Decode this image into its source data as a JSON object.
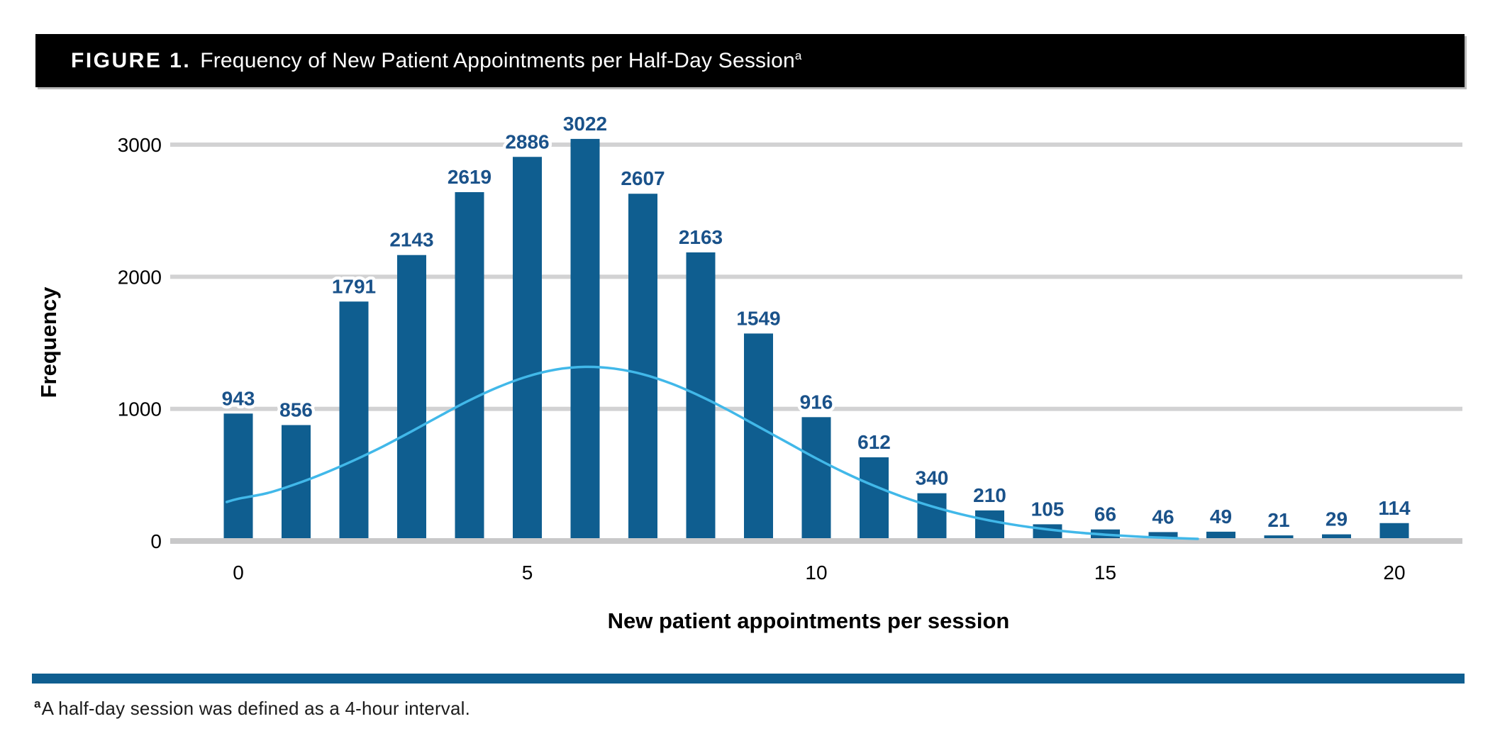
{
  "figure": {
    "label": "FIGURE 1.",
    "title": "Frequency of New Patient Appointments per Half-Day Session",
    "superscript": "a"
  },
  "colors": {
    "title_bar_bg": "#000000",
    "title_text": "#ffffff",
    "footer_rule": "#0f5e90",
    "footnote_text": "#1c1c1c"
  },
  "chart_data": {
    "type": "bar",
    "title": "Frequency of New Patient Appointments per Half-Day Session",
    "xlabel": "New patient appointments per session",
    "ylabel": "Frequency",
    "x": [
      0,
      1,
      2,
      3,
      4,
      5,
      6,
      7,
      8,
      9,
      10,
      11,
      12,
      13,
      14,
      15,
      16,
      17,
      18,
      19,
      20
    ],
    "values": [
      943,
      856,
      1791,
      2143,
      2619,
      2886,
      3022,
      2607,
      2163,
      1549,
      916,
      612,
      340,
      210,
      105,
      66,
      46,
      49,
      21,
      29,
      114
    ],
    "x_ticks": [
      0,
      5,
      10,
      15,
      20
    ],
    "y_ticks": [
      0,
      1000,
      2000,
      3000
    ],
    "ylim": [
      0,
      3200
    ],
    "grid": "horizontal",
    "legend": "none",
    "bar_value_labels": true,
    "normal_curve": {
      "description": "fitted normal distribution overlay, peak about 1320 near x=6",
      "points": [
        [
          -0.2,
          295
        ],
        [
          0,
          320
        ],
        [
          0.5,
          362
        ],
        [
          1,
          432
        ],
        [
          1.5,
          515
        ],
        [
          2,
          610
        ],
        [
          2.5,
          715
        ],
        [
          3,
          830
        ],
        [
          3.5,
          950
        ],
        [
          4,
          1065
        ],
        [
          4.5,
          1165
        ],
        [
          5,
          1245
        ],
        [
          5.5,
          1298
        ],
        [
          6,
          1318
        ],
        [
          6.5,
          1305
        ],
        [
          7,
          1262
        ],
        [
          7.5,
          1190
        ],
        [
          8,
          1095
        ],
        [
          8.5,
          985
        ],
        [
          9,
          865
        ],
        [
          9.5,
          745
        ],
        [
          10,
          625
        ],
        [
          10.5,
          515
        ],
        [
          11,
          418
        ],
        [
          11.5,
          333
        ],
        [
          12,
          262
        ],
        [
          12.5,
          203
        ],
        [
          13,
          155
        ],
        [
          13.5,
          117
        ],
        [
          14,
          88
        ],
        [
          14.5,
          65
        ],
        [
          15,
          48
        ],
        [
          15.5,
          35
        ],
        [
          16,
          25
        ],
        [
          16.6,
          16
        ]
      ]
    },
    "colors": {
      "bar": "#0f5e90",
      "value_label": "#1a528a",
      "curve": "#41b8e9",
      "gridline": "#d2d2d3",
      "axis_line": "#c8c8c9",
      "tick_label": "#000000"
    }
  },
  "footnote": {
    "marker": "a",
    "text": "A half-day session was defined as a 4-hour interval."
  }
}
